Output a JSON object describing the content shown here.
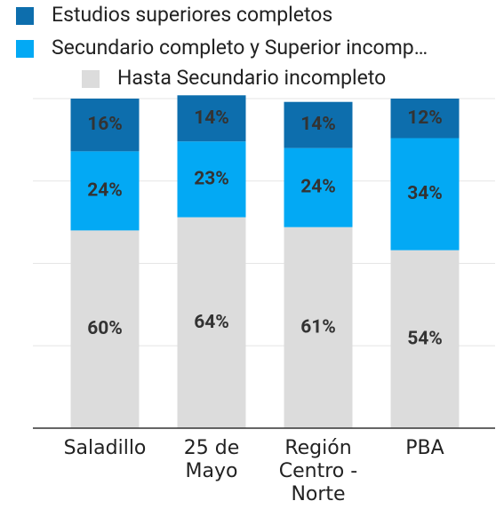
{
  "chart_data": {
    "type": "stacked_bar",
    "categories": [
      "Saladillo",
      "25 de Mayo",
      "Región Centro - Norte",
      "PBA"
    ],
    "series": [
      {
        "name": "Estudios superiores completos",
        "color": "#0d6ead",
        "values": [
          16,
          14,
          14,
          12
        ],
        "value_labels": [
          "16%",
          "14%",
          "14%",
          "12%"
        ]
      },
      {
        "name": "Secundario completo y Superior incomp…",
        "color": "#03a9f4",
        "values": [
          24,
          23,
          24,
          34
        ],
        "value_labels": [
          "24%",
          "23%",
          "24%",
          "34%"
        ]
      },
      {
        "name": "Hasta Secundario incompleto",
        "color": "#dcdcdc",
        "values": [
          60,
          64,
          61,
          54
        ],
        "value_labels": [
          "60%",
          "64%",
          "61%",
          "54%"
        ]
      }
    ],
    "ylim": [
      0,
      100
    ],
    "yticks": [
      0,
      25,
      50,
      75,
      100
    ],
    "grid": true,
    "legend": "top"
  }
}
